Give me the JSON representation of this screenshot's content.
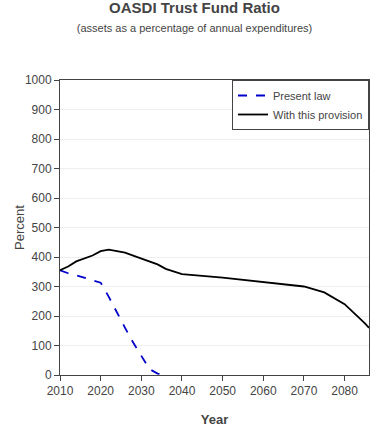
{
  "chart_data": {
    "type": "line",
    "title": "OASDI Trust Fund Ratio",
    "subtitle": "(assets as a percentage of annual expenditures)",
    "xlabel": "Year",
    "ylabel": "Percent",
    "xlim": [
      2010,
      2086
    ],
    "xticks": [
      2010,
      2020,
      2030,
      2040,
      2050,
      2060,
      2070,
      2080
    ],
    "ylim": [
      0,
      1000
    ],
    "yticks": [
      0,
      100,
      200,
      300,
      400,
      500,
      600,
      700,
      800,
      900,
      1000
    ],
    "grid": true,
    "legend": "upper right",
    "series": [
      {
        "name": "Present law",
        "color": "#0000cc",
        "line_style": "dashed",
        "x": [
          2010,
          2012,
          2014,
          2016,
          2018,
          2020,
          2022,
          2024,
          2026,
          2028,
          2030,
          2032,
          2034,
          2036
        ],
        "values": [
          355,
          345,
          338,
          330,
          322,
          313,
          265,
          210,
          160,
          110,
          65,
          20,
          5,
          0
        ]
      },
      {
        "name": "With this provision",
        "color": "#000000",
        "line_style": "solid",
        "x": [
          2010,
          2012,
          2014,
          2016,
          2018,
          2020,
          2022,
          2024,
          2026,
          2028,
          2030,
          2032,
          2034,
          2036,
          2038,
          2040,
          2050,
          2060,
          2065,
          2070,
          2075,
          2080,
          2085,
          2086
        ],
        "values": [
          355,
          368,
          385,
          395,
          405,
          420,
          425,
          420,
          415,
          405,
          395,
          385,
          375,
          360,
          350,
          342,
          330,
          315,
          308,
          300,
          280,
          240,
          175,
          160
        ]
      }
    ]
  }
}
